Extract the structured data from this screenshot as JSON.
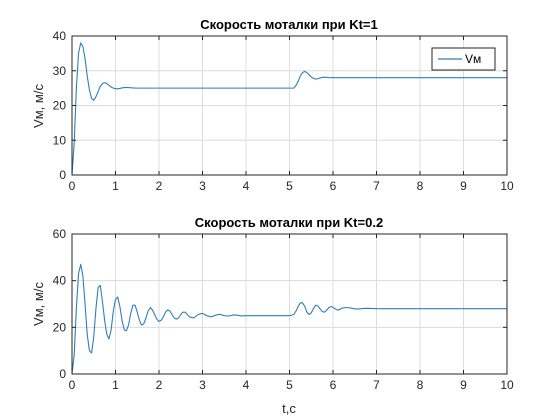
{
  "chart_data": [
    {
      "type": "line",
      "title": "Скорость моталки при Kt=1",
      "xlabel": "",
      "ylabel": "Vм, м/с",
      "xlim": [
        0,
        10
      ],
      "ylim": [
        0,
        40
      ],
      "xticks": [
        "0",
        "1",
        "2",
        "3",
        "4",
        "5",
        "6",
        "7",
        "8",
        "9",
        "10"
      ],
      "yticks": [
        "0",
        "10",
        "20",
        "30",
        "40"
      ],
      "grid": true,
      "legend": "top-right",
      "series": [
        {
          "name": "Vм",
          "color": "#2f7fb6",
          "x": [
            0,
            0.05,
            0.1,
            0.15,
            0.2,
            0.25,
            0.3,
            0.35,
            0.4,
            0.45,
            0.5,
            0.55,
            0.6,
            0.65,
            0.7,
            0.75,
            0.8,
            0.85,
            0.9,
            0.95,
            1.0,
            1.05,
            1.1,
            1.15,
            1.2,
            1.25,
            1.3,
            1.4,
            1.5,
            1.6,
            1.7,
            1.8,
            1.9,
            2.0,
            2.5,
            3.0,
            3.5,
            4.0,
            4.5,
            5.0,
            5.1,
            5.15,
            5.2,
            5.25,
            5.3,
            5.35,
            5.4,
            5.45,
            5.5,
            5.55,
            5.6,
            5.65,
            5.7,
            5.75,
            5.8,
            5.9,
            6.0,
            6.2,
            6.5,
            7.0,
            7.5,
            8.0,
            9.0,
            10.0
          ],
          "y": [
            0,
            9,
            25,
            35,
            38,
            37,
            33.5,
            28.5,
            24.5,
            22,
            21.5,
            22.5,
            24,
            25.5,
            26.3,
            26.6,
            26.3,
            25.8,
            25.3,
            25,
            24.8,
            24.8,
            24.9,
            25.05,
            25.15,
            25.2,
            25.15,
            25.05,
            25,
            25,
            25,
            25,
            25,
            25,
            25,
            25,
            25,
            25,
            25,
            25,
            25,
            25.8,
            27,
            28.5,
            29.5,
            29.8,
            29.5,
            28.8,
            28.2,
            27.8,
            27.6,
            27.7,
            27.9,
            28.1,
            28.15,
            28.05,
            28,
            28,
            28,
            28,
            28,
            28,
            28,
            28
          ]
        }
      ]
    },
    {
      "type": "line",
      "title": "Скорость моталки при Kt=0.2",
      "xlabel": "t,c",
      "ylabel": "Vм, м/с",
      "xlim": [
        0,
        10
      ],
      "ylim": [
        0,
        60
      ],
      "xticks": [
        "0",
        "1",
        "2",
        "3",
        "4",
        "5",
        "6",
        "7",
        "8",
        "9",
        "10"
      ],
      "yticks": [
        "0",
        "20",
        "40",
        "60"
      ],
      "grid": true,
      "legend": "none",
      "series": [
        {
          "color": "#2f7fb6",
          "x": [
            0,
            0.05,
            0.1,
            0.15,
            0.2,
            0.25,
            0.3,
            0.35,
            0.4,
            0.45,
            0.5,
            0.55,
            0.6,
            0.65,
            0.7,
            0.75,
            0.8,
            0.85,
            0.9,
            0.95,
            1.0,
            1.05,
            1.1,
            1.15,
            1.2,
            1.25,
            1.3,
            1.35,
            1.4,
            1.45,
            1.5,
            1.55,
            1.6,
            1.65,
            1.7,
            1.75,
            1.8,
            1.85,
            1.9,
            1.95,
            2.0,
            2.05,
            2.1,
            2.15,
            2.2,
            2.25,
            2.3,
            2.35,
            2.4,
            2.45,
            2.5,
            2.55,
            2.6,
            2.65,
            2.7,
            2.8,
            2.9,
            3.0,
            3.1,
            3.2,
            3.3,
            3.4,
            3.5,
            3.6,
            3.7,
            3.8,
            3.9,
            4.0,
            4.2,
            4.4,
            4.6,
            4.8,
            5.0,
            5.1,
            5.15,
            5.2,
            5.25,
            5.3,
            5.35,
            5.4,
            5.45,
            5.5,
            5.55,
            5.6,
            5.65,
            5.7,
            5.75,
            5.8,
            5.85,
            5.9,
            5.95,
            6.0,
            6.05,
            6.1,
            6.15,
            6.2,
            6.3,
            6.4,
            6.5,
            6.6,
            6.7,
            6.8,
            7.0,
            7.5,
            8.0,
            9.0,
            10.0
          ],
          "y": [
            0,
            8,
            28,
            43,
            47,
            42,
            30,
            17,
            10,
            9,
            16,
            28,
            37,
            38,
            31,
            23,
            17,
            15,
            19,
            27,
            32,
            33,
            29,
            23,
            19,
            18.5,
            21,
            26,
            29.5,
            29.5,
            26.5,
            23,
            21,
            21.5,
            24,
            27,
            28.5,
            27.5,
            25.5,
            23.5,
            22.5,
            23,
            24.5,
            26.5,
            27.5,
            27,
            25.5,
            24,
            23.5,
            24,
            25.5,
            26.5,
            26.5,
            25.5,
            24.5,
            24,
            25.5,
            26,
            25,
            24.5,
            25.2,
            25.6,
            25,
            24.8,
            25.3,
            25.2,
            24.9,
            25,
            25,
            25,
            25,
            25,
            25,
            25.5,
            27,
            29,
            30.5,
            30.5,
            29,
            26.5,
            25.5,
            26.2,
            28,
            29.5,
            29.2,
            28,
            26.8,
            26.5,
            27.3,
            28.4,
            28.9,
            28.6,
            27.9,
            27.4,
            27.6,
            28.2,
            28.5,
            28.3,
            27.9,
            27.9,
            28.1,
            28.15,
            28,
            28,
            28,
            28,
            28
          ]
        }
      ]
    }
  ]
}
